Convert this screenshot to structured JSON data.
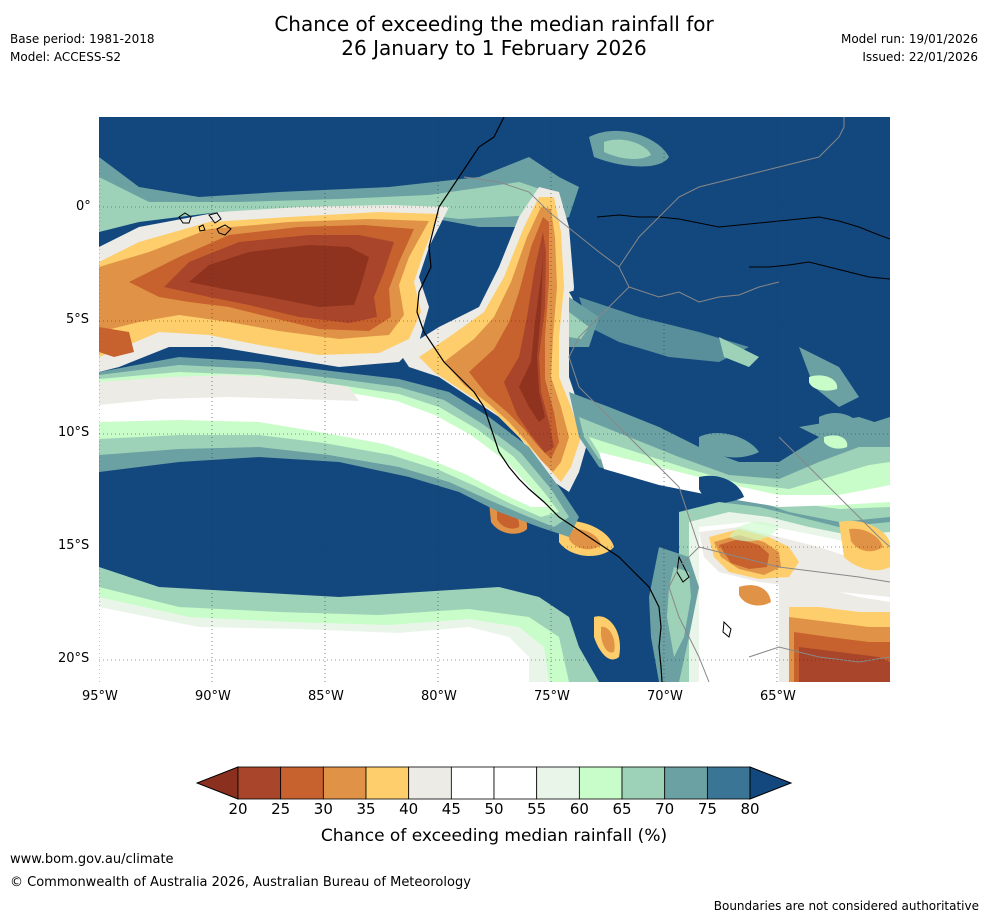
{
  "header": {
    "title_line1": "Chance of exceeding the median rainfall for",
    "title_line2": "26 January to 1 February 2026",
    "base_period": "Base period: 1981-2018",
    "model": "Model: ACCESS-S2",
    "model_run": "Model run: 19/01/2026",
    "issued": "Issued: 22/01/2026"
  },
  "map": {
    "lat_labels": [
      "0°",
      "5°S",
      "10°S",
      "15°S",
      "20°S"
    ],
    "lon_labels": [
      "95°W",
      "90°W",
      "85°W",
      "80°W",
      "75°W",
      "70°W",
      "65°W"
    ],
    "lon_range": [
      -95,
      -60
    ],
    "lat_range": [
      -21,
      4
    ]
  },
  "colorbar": {
    "title": "Chance of exceeding median rainfall (%)",
    "ticks": [
      "20",
      "25",
      "30",
      "35",
      "40",
      "45",
      "50",
      "55",
      "60",
      "65",
      "70",
      "75",
      "80"
    ],
    "low_color": "#8b2f1e",
    "high_color": "#13487e",
    "colors": [
      "#a9452a",
      "#c7622e",
      "#e09346",
      "#fdce6b",
      "#ecebe6",
      "#ffffff",
      "#ffffff",
      "#eaf5ea",
      "#c8fcc8",
      "#9dd2b8",
      "#6ca1a3",
      "#3b7596"
    ]
  },
  "footer": {
    "url": "www.bom.gov.au/climate",
    "copyright": "© Commonwealth of Australia 2026, Australian Bureau of Meteorology",
    "disclaimer": "Boundaries are not considered authoritative"
  }
}
